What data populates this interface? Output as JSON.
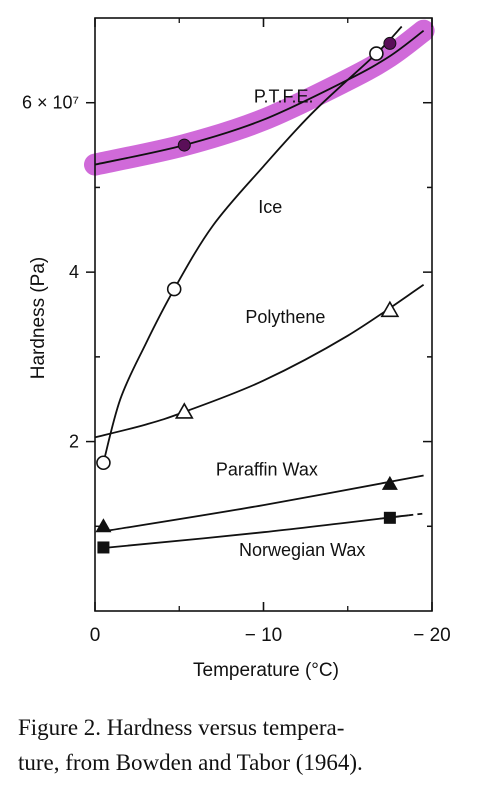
{
  "chart_data": {
    "type": "line",
    "xlabel": "Temperature (°C)",
    "ylabel": "Hardness (Pa)",
    "xlim": [
      0,
      -20
    ],
    "ylim": [
      0,
      7.0
    ],
    "y_unit_multiplier": 10000000,
    "x_ticks": [
      0,
      -10,
      -20
    ],
    "x_tick_labels": [
      "0",
      "− 10",
      "− 20"
    ],
    "y_ticks": [
      2,
      4,
      6
    ],
    "y_tick_labels": [
      "2",
      "4",
      "6 × 10⁷"
    ],
    "grid": false,
    "series": [
      {
        "name": "P.T.F.E.",
        "marker": "filled-circle",
        "highlight_color": "#c850d2",
        "points": [
          {
            "x": -5.3,
            "y": 5.5
          },
          {
            "x": -17.5,
            "y": 6.7
          }
        ],
        "curve": [
          {
            "x": 0,
            "y": 5.27
          },
          {
            "x": -5.3,
            "y": 5.5
          },
          {
            "x": -10,
            "y": 5.8
          },
          {
            "x": -15,
            "y": 6.27
          },
          {
            "x": -17.5,
            "y": 6.55
          },
          {
            "x": -19.5,
            "y": 6.85
          }
        ]
      },
      {
        "name": "Ice",
        "marker": "open-circle",
        "points": [
          {
            "x": -0.5,
            "y": 1.75
          },
          {
            "x": -4.7,
            "y": 3.8
          },
          {
            "x": -16.7,
            "y": 6.58
          }
        ],
        "curve": [
          {
            "x": -0.5,
            "y": 1.75
          },
          {
            "x": -1.5,
            "y": 2.5
          },
          {
            "x": -3,
            "y": 3.15
          },
          {
            "x": -4.7,
            "y": 3.8
          },
          {
            "x": -7,
            "y": 4.55
          },
          {
            "x": -10,
            "y": 5.25
          },
          {
            "x": -13,
            "y": 5.9
          },
          {
            "x": -16.7,
            "y": 6.58
          },
          {
            "x": -18.2,
            "y": 6.9
          }
        ]
      },
      {
        "name": "Polythene",
        "marker": "open-triangle",
        "points": [
          {
            "x": -5.3,
            "y": 2.35
          },
          {
            "x": -17.5,
            "y": 3.55
          }
        ],
        "curve": [
          {
            "x": 0,
            "y": 2.05
          },
          {
            "x": -3,
            "y": 2.2
          },
          {
            "x": -5.3,
            "y": 2.35
          },
          {
            "x": -10,
            "y": 2.72
          },
          {
            "x": -15,
            "y": 3.25
          },
          {
            "x": -19.5,
            "y": 3.85
          }
        ]
      },
      {
        "name": "Paraffin Wax",
        "marker": "filled-triangle",
        "points": [
          {
            "x": -0.5,
            "y": 1.0
          },
          {
            "x": -17.5,
            "y": 1.5
          }
        ],
        "curve": [
          {
            "x": -0.8,
            "y": 0.95
          },
          {
            "x": -10,
            "y": 1.25
          },
          {
            "x": -19.5,
            "y": 1.6
          }
        ]
      },
      {
        "name": "Norwegian Wax",
        "marker": "filled-square",
        "points": [
          {
            "x": -0.5,
            "y": 0.75
          },
          {
            "x": -17.5,
            "y": 1.1
          }
        ],
        "curve": [
          {
            "x": -0.8,
            "y": 0.75
          },
          {
            "x": -10,
            "y": 0.93
          },
          {
            "x": -19.5,
            "y": 1.15
          }
        ],
        "dashed_end": true
      }
    ],
    "annotations": [
      {
        "text": "P.T.F.E.",
        "x": -11.2,
        "y": 6.0
      },
      {
        "text": "Ice",
        "x": -10.4,
        "y": 4.7
      },
      {
        "text": "Polythene",
        "x": -11.3,
        "y": 3.4
      },
      {
        "text": "Paraffin Wax",
        "x": -10.2,
        "y": 1.6
      },
      {
        "text": "Norwegian Wax",
        "x": -12.3,
        "y": 0.65
      }
    ]
  },
  "caption": {
    "line1": "Figure 2. Hardness versus tempera-",
    "line2": "ture, from Bowden and Tabor (1964)."
  }
}
